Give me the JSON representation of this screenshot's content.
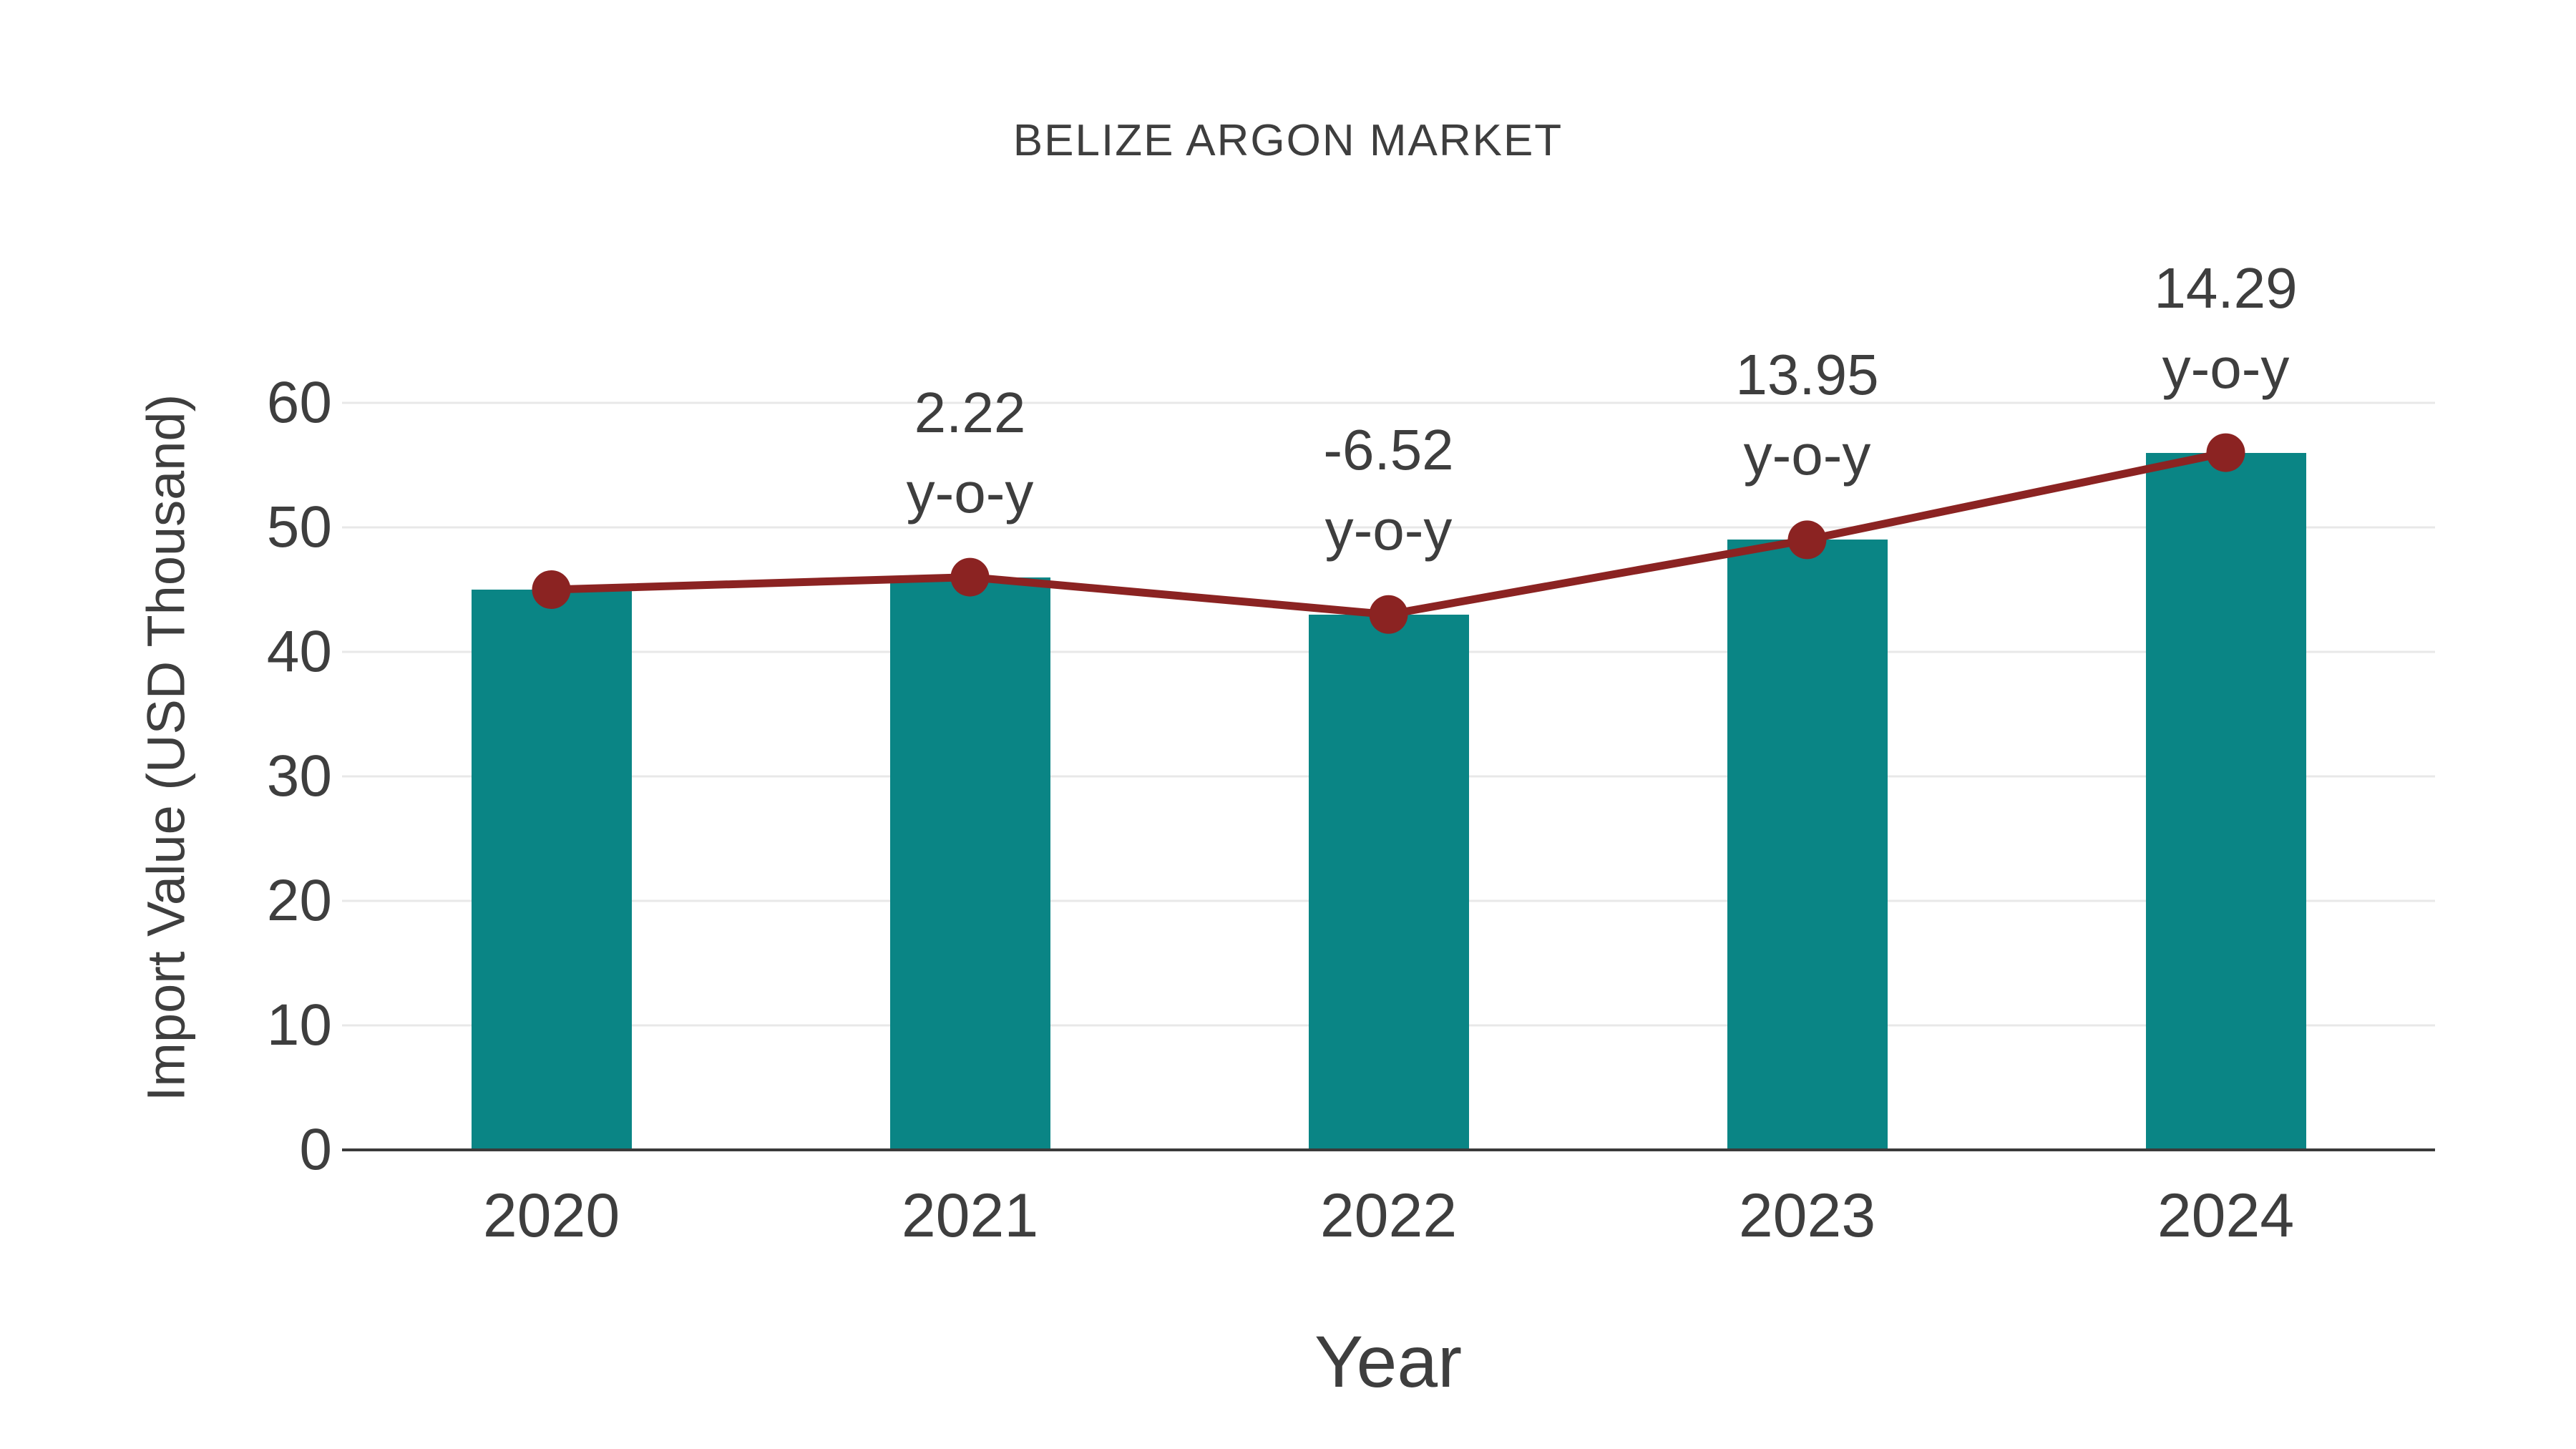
{
  "chart_data": {
    "type": "bar",
    "title": "BELIZE ARGON MARKET",
    "xlabel": "Year",
    "ylabel": "Import Value (USD Thousand)",
    "categories": [
      "2020",
      "2021",
      "2022",
      "2023",
      "2024"
    ],
    "series": [
      {
        "name": "import-value-bars",
        "type": "bar",
        "values": [
          45,
          46,
          43,
          49,
          56
        ]
      },
      {
        "name": "import-value-trend-line",
        "type": "line",
        "values": [
          45,
          46,
          43,
          49,
          56
        ]
      }
    ],
    "annotations": [
      {
        "category": "2021",
        "value_label": "2.22",
        "suffix_label": "y-o-y"
      },
      {
        "category": "2022",
        "value_label": "-6.52",
        "suffix_label": "y-o-y"
      },
      {
        "category": "2023",
        "value_label": "13.95",
        "suffix_label": "y-o-y"
      },
      {
        "category": "2024",
        "value_label": "14.29",
        "suffix_label": "y-o-y"
      }
    ],
    "ylim": [
      0,
      60
    ],
    "yticks": [
      0,
      10,
      20,
      30,
      40,
      50,
      60
    ],
    "grid": true,
    "legend": "none",
    "colors": {
      "bar": "#0a8585",
      "line": "#8b2322",
      "marker": "#8b2322",
      "text": "#3e3e3e",
      "gridline": "#e8e8e8",
      "axis": "#3a3a3a",
      "background": "#ffffff"
    }
  }
}
